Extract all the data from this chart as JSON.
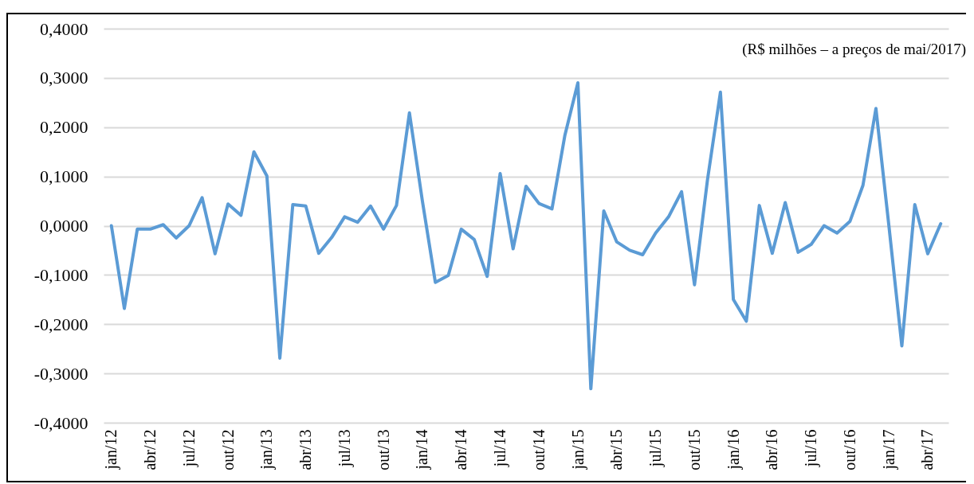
{
  "chart_data": {
    "type": "line",
    "categories": [
      "jan/12",
      null,
      null,
      "abr/12",
      null,
      null,
      "jul/12",
      null,
      null,
      "out/12",
      null,
      null,
      "jan/13",
      null,
      null,
      "abr/13",
      null,
      null,
      "jul/13",
      null,
      null,
      "out/13",
      null,
      null,
      "jan/14",
      null,
      null,
      "abr/14",
      null,
      null,
      "jul/14",
      null,
      null,
      "out/14",
      null,
      null,
      "jan/15",
      null,
      null,
      "abr/15",
      null,
      null,
      "jul/15",
      null,
      null,
      "out/15",
      null,
      null,
      "jan/16",
      null,
      null,
      "abr/16",
      null,
      null,
      "jul/16",
      null,
      null,
      "out/16",
      null,
      null,
      "jan/17",
      null,
      null,
      "abr/17",
      null
    ],
    "series": [
      {
        "color": "#5b9bd5",
        "values": [
          0.0,
          -0.168,
          -0.007,
          -0.007,
          0.002,
          -0.025,
          0.0,
          0.057,
          -0.057,
          0.044,
          0.021,
          0.15,
          0.101,
          -0.269,
          0.043,
          0.04,
          -0.056,
          -0.024,
          0.018,
          0.007,
          0.04,
          -0.007,
          0.041,
          0.229,
          0.05,
          -0.115,
          -0.101,
          -0.007,
          -0.028,
          -0.103,
          0.106,
          -0.047,
          0.08,
          0.045,
          0.034,
          0.184,
          0.29,
          -0.331,
          0.03,
          -0.033,
          -0.05,
          -0.059,
          -0.015,
          0.018,
          0.069,
          -0.12,
          0.093,
          0.271,
          -0.15,
          -0.194,
          0.041,
          -0.056,
          0.047,
          -0.054,
          -0.038,
          0.0,
          -0.015,
          0.009,
          0.082,
          0.238,
          0.0,
          -0.244,
          0.043,
          -0.057,
          0.004
        ]
      }
    ],
    "ylim": [
      -0.4,
      0.4
    ],
    "yticks": [
      {
        "value": -0.4,
        "label": "-0,4000"
      },
      {
        "value": -0.3,
        "label": "-0,3000"
      },
      {
        "value": -0.2,
        "label": "-0,2000"
      },
      {
        "value": -0.1,
        "label": "-0,1000"
      },
      {
        "value": 0,
        "label": "0,0000"
      },
      {
        "value": 0.1,
        "label": "0,1000"
      },
      {
        "value": 0.2,
        "label": "0,2000"
      },
      {
        "value": 0.3,
        "label": "0,3000"
      },
      {
        "value": 0.4,
        "label": "0,4000"
      }
    ],
    "grid": "y",
    "marker": "none",
    "line_style": "solid",
    "annotations": [
      "(R$ milhões – a preços de mai/2017)"
    ]
  }
}
